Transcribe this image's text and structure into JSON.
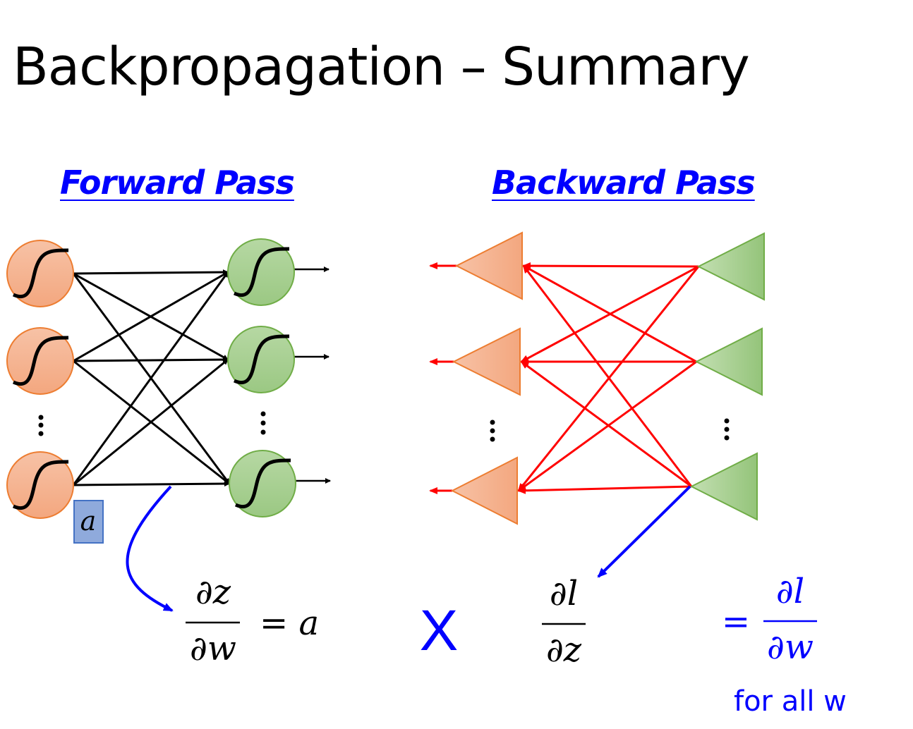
{
  "title": "Backpropagation – Summary",
  "forward": {
    "label": "Forward Pass"
  },
  "backward": {
    "label": "Backward Pass"
  },
  "activation_label": "a",
  "equations": {
    "dz_num": "∂z",
    "dz_den": "∂w",
    "equals_a": "= a",
    "times": "X",
    "dl_num": "∂l",
    "dl_den": "∂z",
    "equals": "=",
    "res_num": "∂l",
    "res_den": "∂w",
    "for_all": "for all w"
  },
  "colors": {
    "input_neuron": "#f4b183",
    "output_neuron": "#a9d18e",
    "forward_edges": "#000000",
    "backward_edges": "#ff0000",
    "highlight": "#0000ff",
    "activation_box": "#8faadc"
  }
}
